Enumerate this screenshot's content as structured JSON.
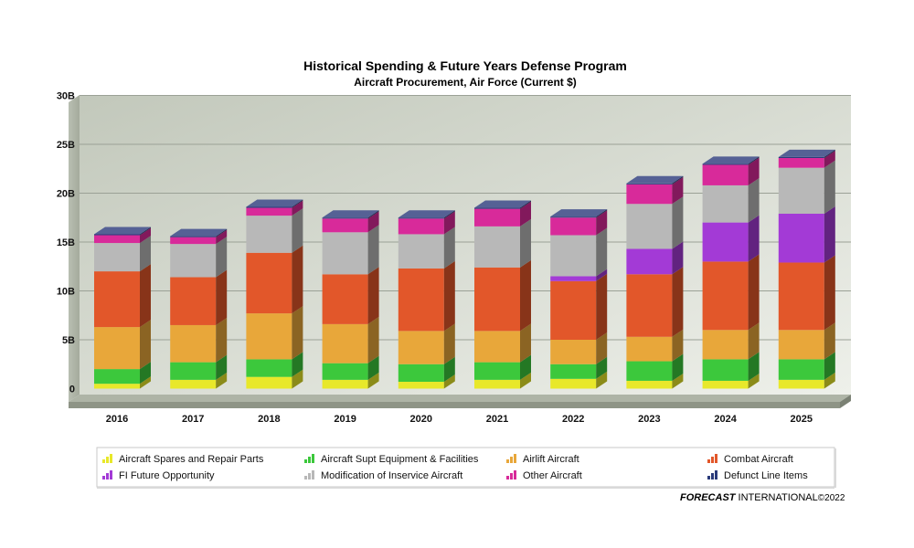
{
  "chart_data": {
    "type": "bar",
    "stacked": true,
    "title": "Historical Spending & Future Years Defense Program",
    "subtitle": "Aircraft Procurement, Air Force (Current $)",
    "ylim": [
      0,
      30
    ],
    "y_ticks": [
      "0",
      "5B",
      "10B",
      "15B",
      "20B",
      "25B",
      "30B"
    ],
    "grid": true,
    "legend_position": "bottom",
    "categories": [
      "2016",
      "2017",
      "2018",
      "2019",
      "2020",
      "2021",
      "2022",
      "2023",
      "2024",
      "2025"
    ],
    "series": [
      {
        "name": "Aircraft Spares and Repair Parts",
        "color": "#e8e82a",
        "values": [
          0.5,
          0.9,
          1.2,
          0.9,
          0.7,
          0.9,
          1.0,
          0.8,
          0.8,
          0.9
        ]
      },
      {
        "name": "Aircraft Supt Equipment & Facilities",
        "color": "#3cc83c",
        "values": [
          1.5,
          1.8,
          1.8,
          1.7,
          1.8,
          1.8,
          1.5,
          2.0,
          2.2,
          2.1
        ]
      },
      {
        "name": "Airlift Aircraft",
        "color": "#e8a73a",
        "values": [
          4.3,
          3.8,
          4.7,
          4.0,
          3.4,
          3.2,
          2.5,
          2.5,
          3.0,
          3.0
        ]
      },
      {
        "name": "Combat Aircraft",
        "color": "#e2572a",
        "values": [
          5.7,
          4.9,
          6.2,
          5.1,
          6.4,
          6.5,
          6.0,
          6.4,
          7.0,
          6.9
        ]
      },
      {
        "name": "FI Future Opportunity",
        "color": "#a33ad6",
        "values": [
          0,
          0,
          0,
          0,
          0,
          0,
          0.5,
          2.6,
          4.0,
          5.0
        ]
      },
      {
        "name": "Modification of Inservice Aircraft",
        "color": "#b8b8b8",
        "values": [
          2.9,
          3.4,
          3.8,
          4.3,
          3.5,
          4.2,
          4.2,
          4.6,
          3.8,
          4.7
        ]
      },
      {
        "name": "Other Aircraft",
        "color": "#d82a9a",
        "values": [
          0.8,
          0.7,
          0.8,
          1.4,
          1.6,
          1.8,
          1.8,
          2.0,
          2.1,
          1.0
        ]
      },
      {
        "name": "Defunct Line Items",
        "color": "#2a3a7a",
        "values": [
          0.1,
          0.1,
          0.1,
          0.1,
          0.1,
          0.1,
          0.1,
          0.1,
          0.1,
          0.1
        ]
      }
    ]
  },
  "branding": {
    "brand_bold": "FORECAST",
    "brand_light": " INTERNATIONAL",
    "copyright": "©2022"
  }
}
